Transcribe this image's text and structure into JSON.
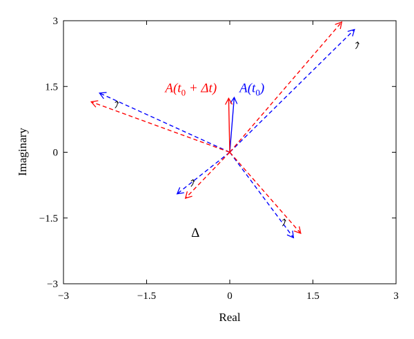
{
  "chart_data": {
    "type": "line",
    "title": "",
    "xlabel": "Real",
    "ylabel": "Imaginary",
    "xlim": [
      -3,
      3
    ],
    "ylim": [
      -3,
      3
    ],
    "xticks": [
      -3,
      -1.5,
      0,
      1.5,
      3
    ],
    "yticks": [
      -3,
      -1.5,
      0,
      1.5,
      3
    ],
    "xtick_labels": [
      "−3",
      "−1.5",
      "0",
      "1.5",
      "3"
    ],
    "ytick_labels": [
      "−3",
      "−1.5",
      "0",
      "1.5",
      "3"
    ],
    "grid": false,
    "origin": [
      0,
      0
    ],
    "series": [
      {
        "name": "A(t0)",
        "color": "#0000ff",
        "style": "solid",
        "vectors": [
          [
            0.08,
            1.25
          ]
        ]
      },
      {
        "name": "A(t0 + Δt)",
        "color": "#ff0000",
        "style": "solid",
        "vectors": [
          [
            -0.02,
            1.23
          ]
        ]
      },
      {
        "name": "",
        "color": "#0000ff",
        "style": "dashed",
        "vectors": [
          [
            2.25,
            2.8
          ],
          [
            -2.35,
            1.35
          ],
          [
            -0.95,
            -0.95
          ],
          [
            1.15,
            -1.95
          ]
        ]
      },
      {
        "name": "",
        "color": "#ff0000",
        "style": "dashed",
        "vectors": [
          [
            2.02,
            2.97
          ],
          [
            -2.5,
            1.15
          ],
          [
            -0.8,
            -1.05
          ],
          [
            1.28,
            -1.85
          ]
        ]
      }
    ],
    "rotation_marks": [
      [
        2.32,
        2.42
      ],
      [
        -2.02,
        1.07
      ],
      [
        -0.65,
        -0.72
      ],
      [
        1.0,
        -1.62
      ]
    ],
    "annotations": [
      {
        "key": "a_t0_dt",
        "parts": [
          "A(t",
          "0",
          " + Δt)"
        ],
        "at": [
          -0.7,
          1.37
        ],
        "color": "#ff0000"
      },
      {
        "key": "a_t0",
        "parts": [
          "A(t",
          "0",
          ")"
        ],
        "at": [
          0.4,
          1.37
        ],
        "color": "#0000ff"
      },
      {
        "key": "delta",
        "parts": [
          "Δ"
        ],
        "at": [
          -0.62,
          -1.93
        ],
        "color": "#000000"
      }
    ]
  }
}
